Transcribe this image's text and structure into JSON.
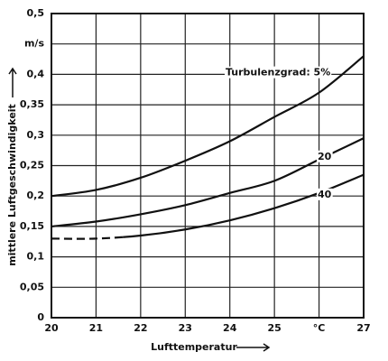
{
  "chart_data": {
    "type": "line",
    "x_label": "Lufttemperatur",
    "y_label": "mittlere Luftgeschwindigkeit",
    "x": [
      20,
      21,
      22,
      23,
      24,
      25,
      26,
      27
    ],
    "series": [
      {
        "name": "Turbulenzgrad: 5%",
        "color": "#111111",
        "values": [
          0.2,
          0.21,
          0.23,
          0.258,
          0.29,
          0.33,
          0.37,
          0.43
        ]
      },
      {
        "name": "20",
        "color": "#111111",
        "values": [
          0.15,
          0.158,
          0.17,
          0.185,
          0.205,
          0.225,
          0.26,
          0.295
        ]
      },
      {
        "name": "40",
        "color": "#111111",
        "values": [
          0.13,
          0.13,
          0.135,
          0.145,
          0.16,
          0.18,
          0.205,
          0.235
        ],
        "dashed_below_x": 21.6
      }
    ],
    "xlim": [
      20,
      27
    ],
    "ylim": [
      0,
      0.5
    ],
    "xticks": [
      20,
      21,
      22,
      23,
      24,
      25,
      {
        "value": 26,
        "label": "°C"
      },
      27
    ],
    "yticks": [
      {
        "value": 0,
        "label": "0"
      },
      {
        "value": 0.05,
        "label": "0,05"
      },
      {
        "value": 0.1,
        "label": "0,1"
      },
      {
        "value": 0.15,
        "label": "0,15"
      },
      {
        "value": 0.2,
        "label": "0,2"
      },
      {
        "value": 0.25,
        "label": "0,25"
      },
      {
        "value": 0.3,
        "label": "0,3"
      },
      {
        "value": 0.35,
        "label": "0,35"
      },
      {
        "value": 0.4,
        "label": "0,4"
      },
      {
        "value": 0.45,
        "label": "m/s"
      },
      {
        "value": 0.5,
        "label": "0,5"
      }
    ],
    "grid": true
  }
}
